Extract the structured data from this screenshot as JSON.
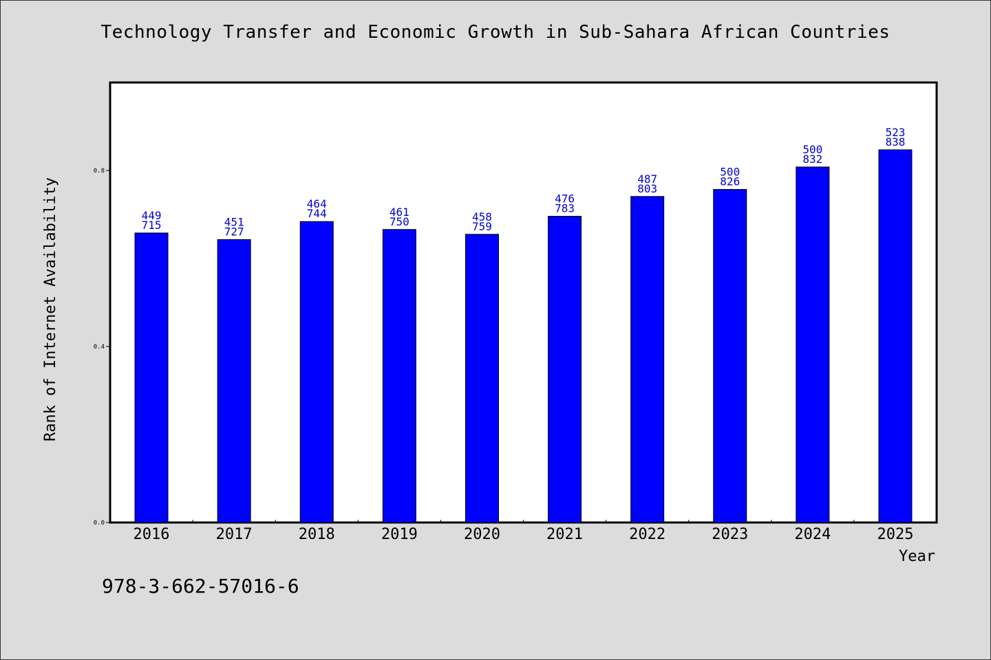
{
  "chart_data": {
    "type": "bar",
    "title": "Technology Transfer and Economic Growth in Sub-Sahara African Countries",
    "xlabel": "Year",
    "ylabel": "Rank of Internet Availability",
    "ylim": [
      0,
      1.0
    ],
    "yticks": [
      0.0,
      0.4,
      0.8
    ],
    "ytick_labels": [
      "0.0",
      "0.4",
      "0.8"
    ],
    "grid": false,
    "categories": [
      "2016",
      "2017",
      "2018",
      "2019",
      "2020",
      "2021",
      "2022",
      "2023",
      "2024",
      "2025"
    ],
    "values": [
      0.658,
      0.643,
      0.684,
      0.666,
      0.655,
      0.696,
      0.741,
      0.757,
      0.808,
      0.847
    ],
    "annotations_top": [
      "449",
      "451",
      "464",
      "461",
      "458",
      "476",
      "487",
      "500",
      "500",
      "523"
    ],
    "annotations_bottom": [
      "715",
      "727",
      "744",
      "750",
      "759",
      "783",
      "803",
      "826",
      "832",
      "838"
    ],
    "bar_color": "#0000ff",
    "label_color": "#0000cc"
  },
  "footer": {
    "isbn": "978-3-662-57016-6"
  }
}
